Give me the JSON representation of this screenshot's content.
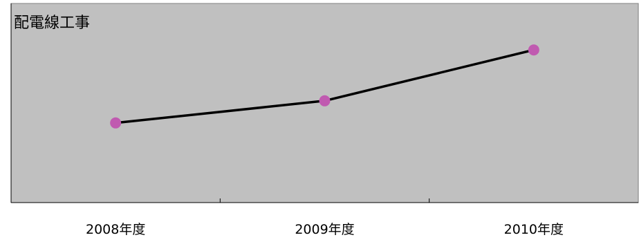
{
  "chart_data": {
    "type": "line",
    "title": "配電線工事",
    "categories": [
      "2008年度",
      "2009年度",
      "2010年度"
    ],
    "series": [
      {
        "values": [
          3.6,
          4.6,
          6.9
        ]
      }
    ],
    "ylim": [
      0,
      9
    ],
    "grid": false,
    "legend": "none",
    "colors": {
      "plot_background": "#c0c0c0",
      "line": "#000000",
      "marker": "#c05ab0",
      "axis": "#000000"
    }
  }
}
